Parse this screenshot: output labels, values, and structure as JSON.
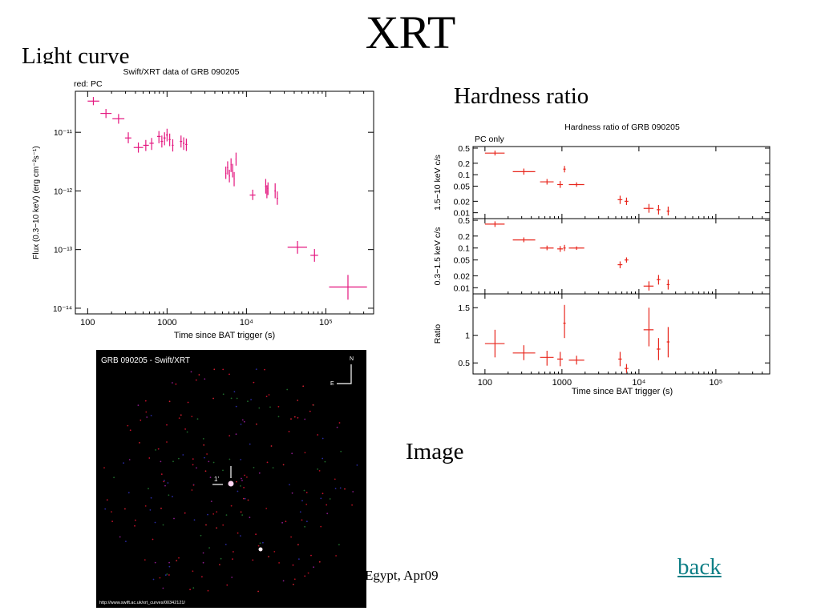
{
  "slide": {
    "title": "XRT",
    "light_curve_label": "Light curve",
    "hardness_ratio_label": "Hardness ratio",
    "image_label": "Image",
    "footer_text": "Egypt, Apr09",
    "back_link": "back"
  },
  "colors": {
    "light_curve_points": "#e4167f",
    "hardness_points": "#e8261c",
    "image_background": "#000000"
  },
  "chart_data": [
    {
      "type": "scatter",
      "title": "Swift/XRT data of GRB 090205",
      "subtitle": "red: PC",
      "xlabel": "Time since BAT trigger (s)",
      "ylabel": "Flux (0.3−10 keV) (erg cm⁻²s⁻¹)",
      "xscale": "log",
      "yscale": "log",
      "xlim": [
        70,
        400000
      ],
      "ylim": [
        8e-15,
        5e-11
      ],
      "x_ticks": [
        {
          "v": 100,
          "t": "100"
        },
        {
          "v": 1000,
          "t": "1000"
        },
        {
          "v": 10000,
          "t": "10⁴"
        },
        {
          "v": 100000,
          "t": "10⁵"
        }
      ],
      "y_ticks": [
        {
          "v": 1e-11,
          "t": "10⁻¹¹"
        },
        {
          "v": 1e-12,
          "t": "10⁻¹²"
        },
        {
          "v": 1e-13,
          "t": "10⁻¹³"
        },
        {
          "v": 1e-14,
          "t": "10⁻¹⁴"
        }
      ],
      "grid": false,
      "points": [
        {
          "x": 118,
          "y": 3.4e-11,
          "xlo": 100,
          "xhi": 140,
          "ylo": 2.9e-11,
          "yhi": 4e-11
        },
        {
          "x": 170,
          "y": 2.1e-11,
          "xlo": 145,
          "xhi": 200,
          "ylo": 1.75e-11,
          "yhi": 2.5e-11
        },
        {
          "x": 245,
          "y": 1.7e-11,
          "xlo": 205,
          "xhi": 290,
          "ylo": 1.4e-11,
          "yhi": 2.05e-11
        },
        {
          "x": 325,
          "y": 8e-12,
          "xlo": 295,
          "xhi": 355,
          "ylo": 6.5e-12,
          "yhi": 1e-11
        },
        {
          "x": 435,
          "y": 5.5e-12,
          "xlo": 380,
          "xhi": 500,
          "ylo": 4.5e-12,
          "yhi": 6.7e-12
        },
        {
          "x": 540,
          "y": 6e-12,
          "xlo": 500,
          "xhi": 590,
          "ylo": 4.8e-12,
          "yhi": 7.4e-12
        },
        {
          "x": 640,
          "y": 6.5e-12,
          "xlo": 600,
          "xhi": 680,
          "ylo": 5e-12,
          "yhi": 8e-12
        },
        {
          "x": 790,
          "y": 8.5e-12,
          "xlo": 750,
          "xhi": 830,
          "ylo": 6.5e-12,
          "yhi": 1.05e-11
        },
        {
          "x": 860,
          "y": 7e-12,
          "xlo": 830,
          "xhi": 890,
          "ylo": 5.5e-12,
          "yhi": 8.8e-12
        },
        {
          "x": 930,
          "y": 8e-12,
          "xlo": 900,
          "xhi": 960,
          "ylo": 6e-12,
          "yhi": 1e-11
        },
        {
          "x": 1000,
          "y": 9e-12,
          "xlo": 970,
          "xhi": 1030,
          "ylo": 7e-12,
          "yhi": 1.15e-11
        },
        {
          "x": 1080,
          "y": 7.5e-12,
          "xlo": 1050,
          "xhi": 1110,
          "ylo": 5.8e-12,
          "yhi": 9.5e-12
        },
        {
          "x": 1180,
          "y": 6e-12,
          "xlo": 1150,
          "xhi": 1210,
          "ylo": 4.7e-12,
          "yhi": 7.6e-12
        },
        {
          "x": 1500,
          "y": 7e-12,
          "xlo": 1450,
          "xhi": 1550,
          "ylo": 5.5e-12,
          "yhi": 8.8e-12
        },
        {
          "x": 1620,
          "y": 6.5e-12,
          "xlo": 1580,
          "xhi": 1660,
          "ylo": 5e-12,
          "yhi": 8.2e-12
        },
        {
          "x": 1750,
          "y": 6.2e-12,
          "xlo": 1700,
          "xhi": 1800,
          "ylo": 4.8e-12,
          "yhi": 7.8e-12
        },
        {
          "x": 5500,
          "y": 2e-12,
          "xlo": 5400,
          "xhi": 5600,
          "ylo": 1.6e-12,
          "yhi": 2.6e-12
        },
        {
          "x": 5800,
          "y": 2.5e-12,
          "xlo": 5700,
          "xhi": 5900,
          "ylo": 1.9e-12,
          "yhi": 3.2e-12
        },
        {
          "x": 6100,
          "y": 1.8e-12,
          "xlo": 6000,
          "xhi": 6200,
          "ylo": 1.4e-12,
          "yhi": 2.3e-12
        },
        {
          "x": 6400,
          "y": 2.8e-12,
          "xlo": 6300,
          "xhi": 6500,
          "ylo": 2.1e-12,
          "yhi": 3.6e-12
        },
        {
          "x": 6700,
          "y": 2.2e-12,
          "xlo": 6600,
          "xhi": 6800,
          "ylo": 1.7e-12,
          "yhi": 2.9e-12
        },
        {
          "x": 7000,
          "y": 1.6e-12,
          "xlo": 6900,
          "xhi": 7100,
          "ylo": 1.2e-12,
          "yhi": 2.1e-12
        },
        {
          "x": 7400,
          "y": 3.5e-12,
          "xlo": 7300,
          "xhi": 7500,
          "ylo": 2.7e-12,
          "yhi": 4.5e-12
        },
        {
          "x": 12000,
          "y": 8.5e-13,
          "xlo": 11000,
          "xhi": 13000,
          "ylo": 7e-13,
          "yhi": 1.05e-12
        },
        {
          "x": 17500,
          "y": 1.2e-12,
          "xlo": 17200,
          "xhi": 17800,
          "ylo": 9e-13,
          "yhi": 1.6e-12
        },
        {
          "x": 18100,
          "y": 9.5e-13,
          "xlo": 17900,
          "xhi": 18300,
          "ylo": 7.5e-13,
          "yhi": 1.25e-12
        },
        {
          "x": 18700,
          "y": 1.1e-12,
          "xlo": 18500,
          "xhi": 18900,
          "ylo": 8.5e-13,
          "yhi": 1.4e-12
        },
        {
          "x": 23000,
          "y": 1e-12,
          "xlo": 22500,
          "xhi": 23500,
          "ylo": 7.5e-13,
          "yhi": 1.35e-12
        },
        {
          "x": 24500,
          "y": 7.5e-13,
          "xlo": 24000,
          "xhi": 25000,
          "ylo": 5.8e-13,
          "yhi": 9.8e-13
        },
        {
          "x": 44000,
          "y": 1.1e-13,
          "xlo": 33000,
          "xhi": 58000,
          "ylo": 8.5e-14,
          "yhi": 1.4e-13
        },
        {
          "x": 72000,
          "y": 8e-14,
          "xlo": 64000,
          "xhi": 80000,
          "ylo": 6.2e-14,
          "yhi": 1.02e-13
        },
        {
          "x": 190000,
          "y": 2.3e-14,
          "xlo": 110000,
          "xhi": 330000,
          "ylo": 1.4e-14,
          "yhi": 3.7e-14
        }
      ]
    },
    {
      "type": "scatter",
      "title": "Hardness ratio of GRB 090205",
      "annotation": "PC only",
      "xlabel": "Time since BAT trigger (s)",
      "xscale": "log",
      "xlim": [
        70,
        500000
      ],
      "x_ticks": [
        {
          "v": 100,
          "t": "100"
        },
        {
          "v": 1000,
          "t": "1000"
        },
        {
          "v": 10000,
          "t": "10⁴"
        },
        {
          "v": 100000,
          "t": "10⁵"
        }
      ],
      "panels": [
        {
          "ylabel": "1.5−10 keV c/s",
          "yscale": "log",
          "ylim": [
            0.007,
            0.55
          ],
          "y_ticks": [
            {
              "v": 0.5,
              "t": "0.5"
            },
            {
              "v": 0.2,
              "t": "0.2"
            },
            {
              "v": 0.1,
              "t": "0.1"
            },
            {
              "v": 0.05,
              "t": "0.05"
            },
            {
              "v": 0.02,
              "t": "0.02"
            },
            {
              "v": 0.01,
              "t": "0.01"
            }
          ],
          "points": [
            {
              "x": 135,
              "y": 0.37,
              "xlo": 100,
              "xhi": 180,
              "ylo": 0.32,
              "yhi": 0.43
            },
            {
              "x": 320,
              "y": 0.12,
              "xlo": 230,
              "xhi": 450,
              "ylo": 0.1,
              "yhi": 0.145
            },
            {
              "x": 640,
              "y": 0.065,
              "xlo": 520,
              "xhi": 780,
              "ylo": 0.055,
              "yhi": 0.077
            },
            {
              "x": 950,
              "y": 0.055,
              "xlo": 870,
              "xhi": 1030,
              "ylo": 0.045,
              "yhi": 0.068
            },
            {
              "x": 1080,
              "y": 0.14,
              "xlo": 1040,
              "xhi": 1120,
              "ylo": 0.115,
              "yhi": 0.17
            },
            {
              "x": 1550,
              "y": 0.055,
              "xlo": 1230,
              "xhi": 1950,
              "ylo": 0.048,
              "yhi": 0.063
            },
            {
              "x": 5700,
              "y": 0.022,
              "xlo": 5300,
              "xhi": 6100,
              "ylo": 0.017,
              "yhi": 0.028
            },
            {
              "x": 6900,
              "y": 0.02,
              "xlo": 6500,
              "xhi": 7300,
              "ylo": 0.016,
              "yhi": 0.025
            },
            {
              "x": 13500,
              "y": 0.013,
              "xlo": 11500,
              "xhi": 15500,
              "ylo": 0.01,
              "yhi": 0.017
            },
            {
              "x": 18000,
              "y": 0.012,
              "xlo": 17000,
              "xhi": 19000,
              "ylo": 0.009,
              "yhi": 0.016
            },
            {
              "x": 24000,
              "y": 0.011,
              "xlo": 23000,
              "xhi": 25000,
              "ylo": 0.0085,
              "yhi": 0.0145
            }
          ]
        },
        {
          "ylabel": "0.3−1.5 keV c/s",
          "yscale": "log",
          "ylim": [
            0.007,
            0.55
          ],
          "y_ticks": [
            {
              "v": 0.5,
              "t": "0.5"
            },
            {
              "v": 0.2,
              "t": "0.2"
            },
            {
              "v": 0.1,
              "t": "0.1"
            },
            {
              "v": 0.05,
              "t": "0.05"
            },
            {
              "v": 0.02,
              "t": "0.02"
            },
            {
              "v": 0.01,
              "t": "0.01"
            }
          ],
          "points": [
            {
              "x": 135,
              "y": 0.4,
              "xlo": 100,
              "xhi": 180,
              "ylo": 0.34,
              "yhi": 0.47
            },
            {
              "x": 320,
              "y": 0.16,
              "xlo": 230,
              "xhi": 450,
              "ylo": 0.14,
              "yhi": 0.185
            },
            {
              "x": 640,
              "y": 0.1,
              "xlo": 520,
              "xhi": 780,
              "ylo": 0.088,
              "yhi": 0.115
            },
            {
              "x": 950,
              "y": 0.095,
              "xlo": 870,
              "xhi": 1030,
              "ylo": 0.08,
              "yhi": 0.112
            },
            {
              "x": 1080,
              "y": 0.1,
              "xlo": 1040,
              "xhi": 1120,
              "ylo": 0.084,
              "yhi": 0.12
            },
            {
              "x": 1550,
              "y": 0.1,
              "xlo": 1230,
              "xhi": 1950,
              "ylo": 0.09,
              "yhi": 0.11
            },
            {
              "x": 5700,
              "y": 0.038,
              "xlo": 5300,
              "xhi": 6100,
              "ylo": 0.031,
              "yhi": 0.046
            },
            {
              "x": 6900,
              "y": 0.05,
              "xlo": 6500,
              "xhi": 7300,
              "ylo": 0.043,
              "yhi": 0.058
            },
            {
              "x": 13500,
              "y": 0.011,
              "xlo": 11500,
              "xhi": 15500,
              "ylo": 0.0085,
              "yhi": 0.0145
            },
            {
              "x": 18000,
              "y": 0.016,
              "xlo": 17000,
              "xhi": 19000,
              "ylo": 0.012,
              "yhi": 0.021
            },
            {
              "x": 24000,
              "y": 0.012,
              "xlo": 23000,
              "xhi": 25000,
              "ylo": 0.009,
              "yhi": 0.016
            }
          ]
        },
        {
          "ylabel": "Ratio",
          "yscale": "linear",
          "ylim": [
            0.3,
            1.75
          ],
          "y_ticks": [
            {
              "v": 1.5,
              "t": "1.5"
            },
            {
              "v": 1,
              "t": "1"
            },
            {
              "v": 0.5,
              "t": "0.5"
            }
          ],
          "points": [
            {
              "x": 135,
              "y": 0.85,
              "xlo": 100,
              "xhi": 180,
              "ylo": 0.6,
              "yhi": 1.1
            },
            {
              "x": 320,
              "y": 0.68,
              "xlo": 230,
              "xhi": 450,
              "ylo": 0.55,
              "yhi": 0.82
            },
            {
              "x": 640,
              "y": 0.6,
              "xlo": 520,
              "xhi": 780,
              "ylo": 0.45,
              "yhi": 0.72
            },
            {
              "x": 950,
              "y": 0.57,
              "xlo": 870,
              "xhi": 1030,
              "ylo": 0.44,
              "yhi": 0.7
            },
            {
              "x": 1080,
              "y": 1.22,
              "xlo": 1040,
              "xhi": 1120,
              "ylo": 0.95,
              "yhi": 1.55
            },
            {
              "x": 1550,
              "y": 0.55,
              "xlo": 1230,
              "xhi": 1950,
              "ylo": 0.47,
              "yhi": 0.63
            },
            {
              "x": 5700,
              "y": 0.57,
              "xlo": 5400,
              "xhi": 6000,
              "ylo": 0.44,
              "yhi": 0.7
            },
            {
              "x": 6900,
              "y": 0.4,
              "xlo": 6500,
              "xhi": 7300,
              "ylo": 0.32,
              "yhi": 0.48
            },
            {
              "x": 13500,
              "y": 1.1,
              "xlo": 11500,
              "xhi": 15500,
              "ylo": 0.8,
              "yhi": 1.5
            },
            {
              "x": 18000,
              "y": 0.75,
              "xlo": 17000,
              "xhi": 19000,
              "ylo": 0.55,
              "yhi": 0.95
            },
            {
              "x": 24000,
              "y": 0.88,
              "xlo": 23000,
              "xhi": 25000,
              "ylo": 0.6,
              "yhi": 1.15
            }
          ]
        }
      ]
    }
  ],
  "sky_image": {
    "title": "GRB 090205 - Swift/XRT",
    "compass_north": "N",
    "compass_east": "E",
    "scale_label": "1'",
    "url": "http://www.swift.ac.uk/xrt_curves/00342121/"
  }
}
